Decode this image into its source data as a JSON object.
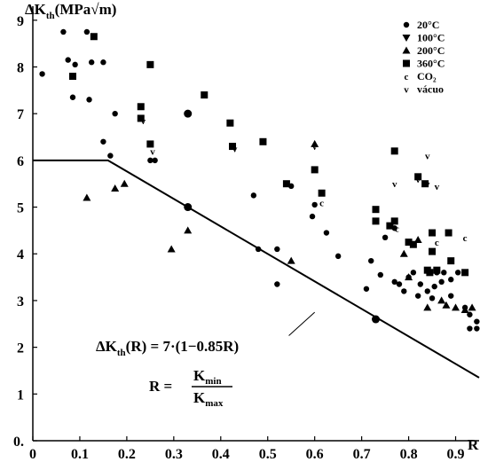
{
  "chart_data": {
    "type": "scatter",
    "y_axis_title": {
      "main": "ΔK",
      "sub": "th",
      "rest": "(MPa√m)"
    },
    "x_axis_title": "R",
    "xlim": [
      0,
      0.95
    ],
    "ylim": [
      0,
      9.3
    ],
    "x_ticks": [
      0,
      0.1,
      0.2,
      0.3,
      0.4,
      0.5,
      0.6,
      0.7,
      0.8,
      0.9
    ],
    "x_tick_labels": [
      "0",
      "0.1",
      "0.2",
      "0.3",
      "0.4",
      "0.5",
      "0.6",
      "0.7",
      "0.8",
      "0.9"
    ],
    "y_ticks": [
      0,
      1,
      2,
      3,
      4,
      5,
      6,
      7,
      8,
      9
    ],
    "y_tick_labels": [
      "0.",
      "1",
      "2",
      "3",
      "4",
      "5",
      "6",
      "7",
      "8",
      "9"
    ],
    "grid": false,
    "legend_position": "top-right",
    "series": [
      {
        "name": "20°C",
        "marker": "circle",
        "points": [
          [
            0.02,
            7.85
          ],
          [
            0.065,
            8.75
          ],
          [
            0.075,
            8.15
          ],
          [
            0.085,
            7.35
          ],
          [
            0.09,
            8.05
          ],
          [
            0.115,
            8.75
          ],
          [
            0.12,
            7.3
          ],
          [
            0.125,
            8.1
          ],
          [
            0.15,
            8.1
          ],
          [
            0.15,
            6.4
          ],
          [
            0.165,
            6.1
          ],
          [
            0.175,
            7.0
          ],
          [
            0.25,
            6.0
          ],
          [
            0.26,
            6.0
          ],
          [
            0.47,
            5.25
          ],
          [
            0.48,
            4.1
          ],
          [
            0.52,
            4.1
          ],
          [
            0.52,
            3.35
          ],
          [
            0.55,
            5.45
          ],
          [
            0.595,
            4.8
          ],
          [
            0.6,
            5.05
          ],
          [
            0.625,
            4.45
          ],
          [
            0.65,
            3.95
          ],
          [
            0.71,
            3.25
          ],
          [
            0.72,
            3.85
          ],
          [
            0.74,
            3.55
          ],
          [
            0.75,
            4.35
          ],
          [
            0.77,
            4.55
          ],
          [
            0.77,
            3.4
          ],
          [
            0.78,
            3.35
          ],
          [
            0.79,
            3.2
          ],
          [
            0.8,
            3.5
          ],
          [
            0.81,
            3.6
          ],
          [
            0.82,
            3.1
          ],
          [
            0.825,
            3.35
          ],
          [
            0.84,
            3.2
          ],
          [
            0.85,
            3.05
          ],
          [
            0.855,
            3.3
          ],
          [
            0.86,
            3.6
          ],
          [
            0.87,
            3.4
          ],
          [
            0.875,
            3.6
          ],
          [
            0.89,
            3.1
          ],
          [
            0.89,
            3.45
          ],
          [
            0.905,
            3.6
          ],
          [
            0.92,
            2.85
          ],
          [
            0.93,
            2.7
          ],
          [
            0.93,
            2.4
          ],
          [
            0.945,
            2.55
          ],
          [
            0.945,
            2.4
          ]
        ]
      },
      {
        "name": "100°C",
        "marker": "triangle-down",
        "points": []
      },
      {
        "name": "200°C",
        "marker": "triangle-up",
        "points": [
          [
            0.115,
            5.2
          ],
          [
            0.175,
            5.4
          ],
          [
            0.195,
            5.5
          ],
          [
            0.295,
            4.1
          ],
          [
            0.33,
            4.5
          ],
          [
            0.55,
            3.85
          ],
          [
            0.6,
            6.35
          ],
          [
            0.79,
            4.0
          ],
          [
            0.8,
            3.5
          ],
          [
            0.82,
            4.3
          ],
          [
            0.84,
            2.85
          ],
          [
            0.87,
            3.0
          ],
          [
            0.88,
            2.9
          ],
          [
            0.9,
            2.85
          ],
          [
            0.92,
            2.8
          ],
          [
            0.935,
            2.85
          ]
        ]
      },
      {
        "name": "360°C",
        "marker": "square",
        "points": [
          [
            0.085,
            7.8
          ],
          [
            0.13,
            8.65
          ],
          [
            0.25,
            8.05
          ],
          [
            0.23,
            7.15
          ],
          [
            0.23,
            6.9
          ],
          [
            0.25,
            6.35
          ],
          [
            0.365,
            7.4
          ],
          [
            0.42,
            6.8
          ],
          [
            0.425,
            6.3
          ],
          [
            0.49,
            6.4
          ],
          [
            0.54,
            5.5
          ],
          [
            0.6,
            5.8
          ],
          [
            0.615,
            5.3
          ],
          [
            0.73,
            4.95
          ],
          [
            0.73,
            4.7
          ],
          [
            0.76,
            4.6
          ],
          [
            0.77,
            4.7
          ],
          [
            0.8,
            4.25
          ],
          [
            0.81,
            4.2
          ],
          [
            0.82,
            5.65
          ],
          [
            0.835,
            5.5
          ],
          [
            0.84,
            3.65
          ],
          [
            0.845,
            3.6
          ],
          [
            0.85,
            4.45
          ],
          [
            0.85,
            4.05
          ],
          [
            0.86,
            3.65
          ],
          [
            0.885,
            4.45
          ],
          [
            0.89,
            3.85
          ],
          [
            0.92,
            3.6
          ],
          [
            0.77,
            6.2
          ]
        ]
      },
      {
        "name": "CO₂",
        "marker": "c",
        "points": [
          [
            0.615,
            5.1
          ],
          [
            0.775,
            4.55
          ],
          [
            0.86,
            4.25
          ],
          [
            0.92,
            4.35
          ]
        ]
      },
      {
        "name": "vácuo",
        "marker": "v",
        "points": [
          [
            0.235,
            6.85
          ],
          [
            0.255,
            6.2
          ],
          [
            0.43,
            6.25
          ],
          [
            0.6,
            6.3
          ],
          [
            0.77,
            5.5
          ],
          [
            0.82,
            5.6
          ],
          [
            0.84,
            6.1
          ],
          [
            0.84,
            5.5
          ],
          [
            0.86,
            5.45
          ]
        ]
      }
    ],
    "highlighted_points": [
      [
        0.33,
        7.0
      ],
      [
        0.33,
        5.0
      ],
      [
        0.73,
        2.6
      ]
    ],
    "threshold_line": {
      "points": [
        [
          0.0,
          6.0
        ],
        [
          0.16,
          6.0
        ],
        [
          0.95,
          1.35
        ]
      ],
      "annotation_line": [
        [
          0.6,
          2.75
        ],
        [
          0.545,
          2.25
        ]
      ]
    },
    "annotations": {
      "formula": {
        "prefix": "ΔK",
        "sub": "th",
        "rest": "(R) = 7·(1−0.85R)"
      },
      "r_equation": {
        "lhs": "R =",
        "numerator_main": "K",
        "numerator_sub": "min",
        "denominator_main": "K",
        "denominator_sub": "max"
      }
    }
  }
}
